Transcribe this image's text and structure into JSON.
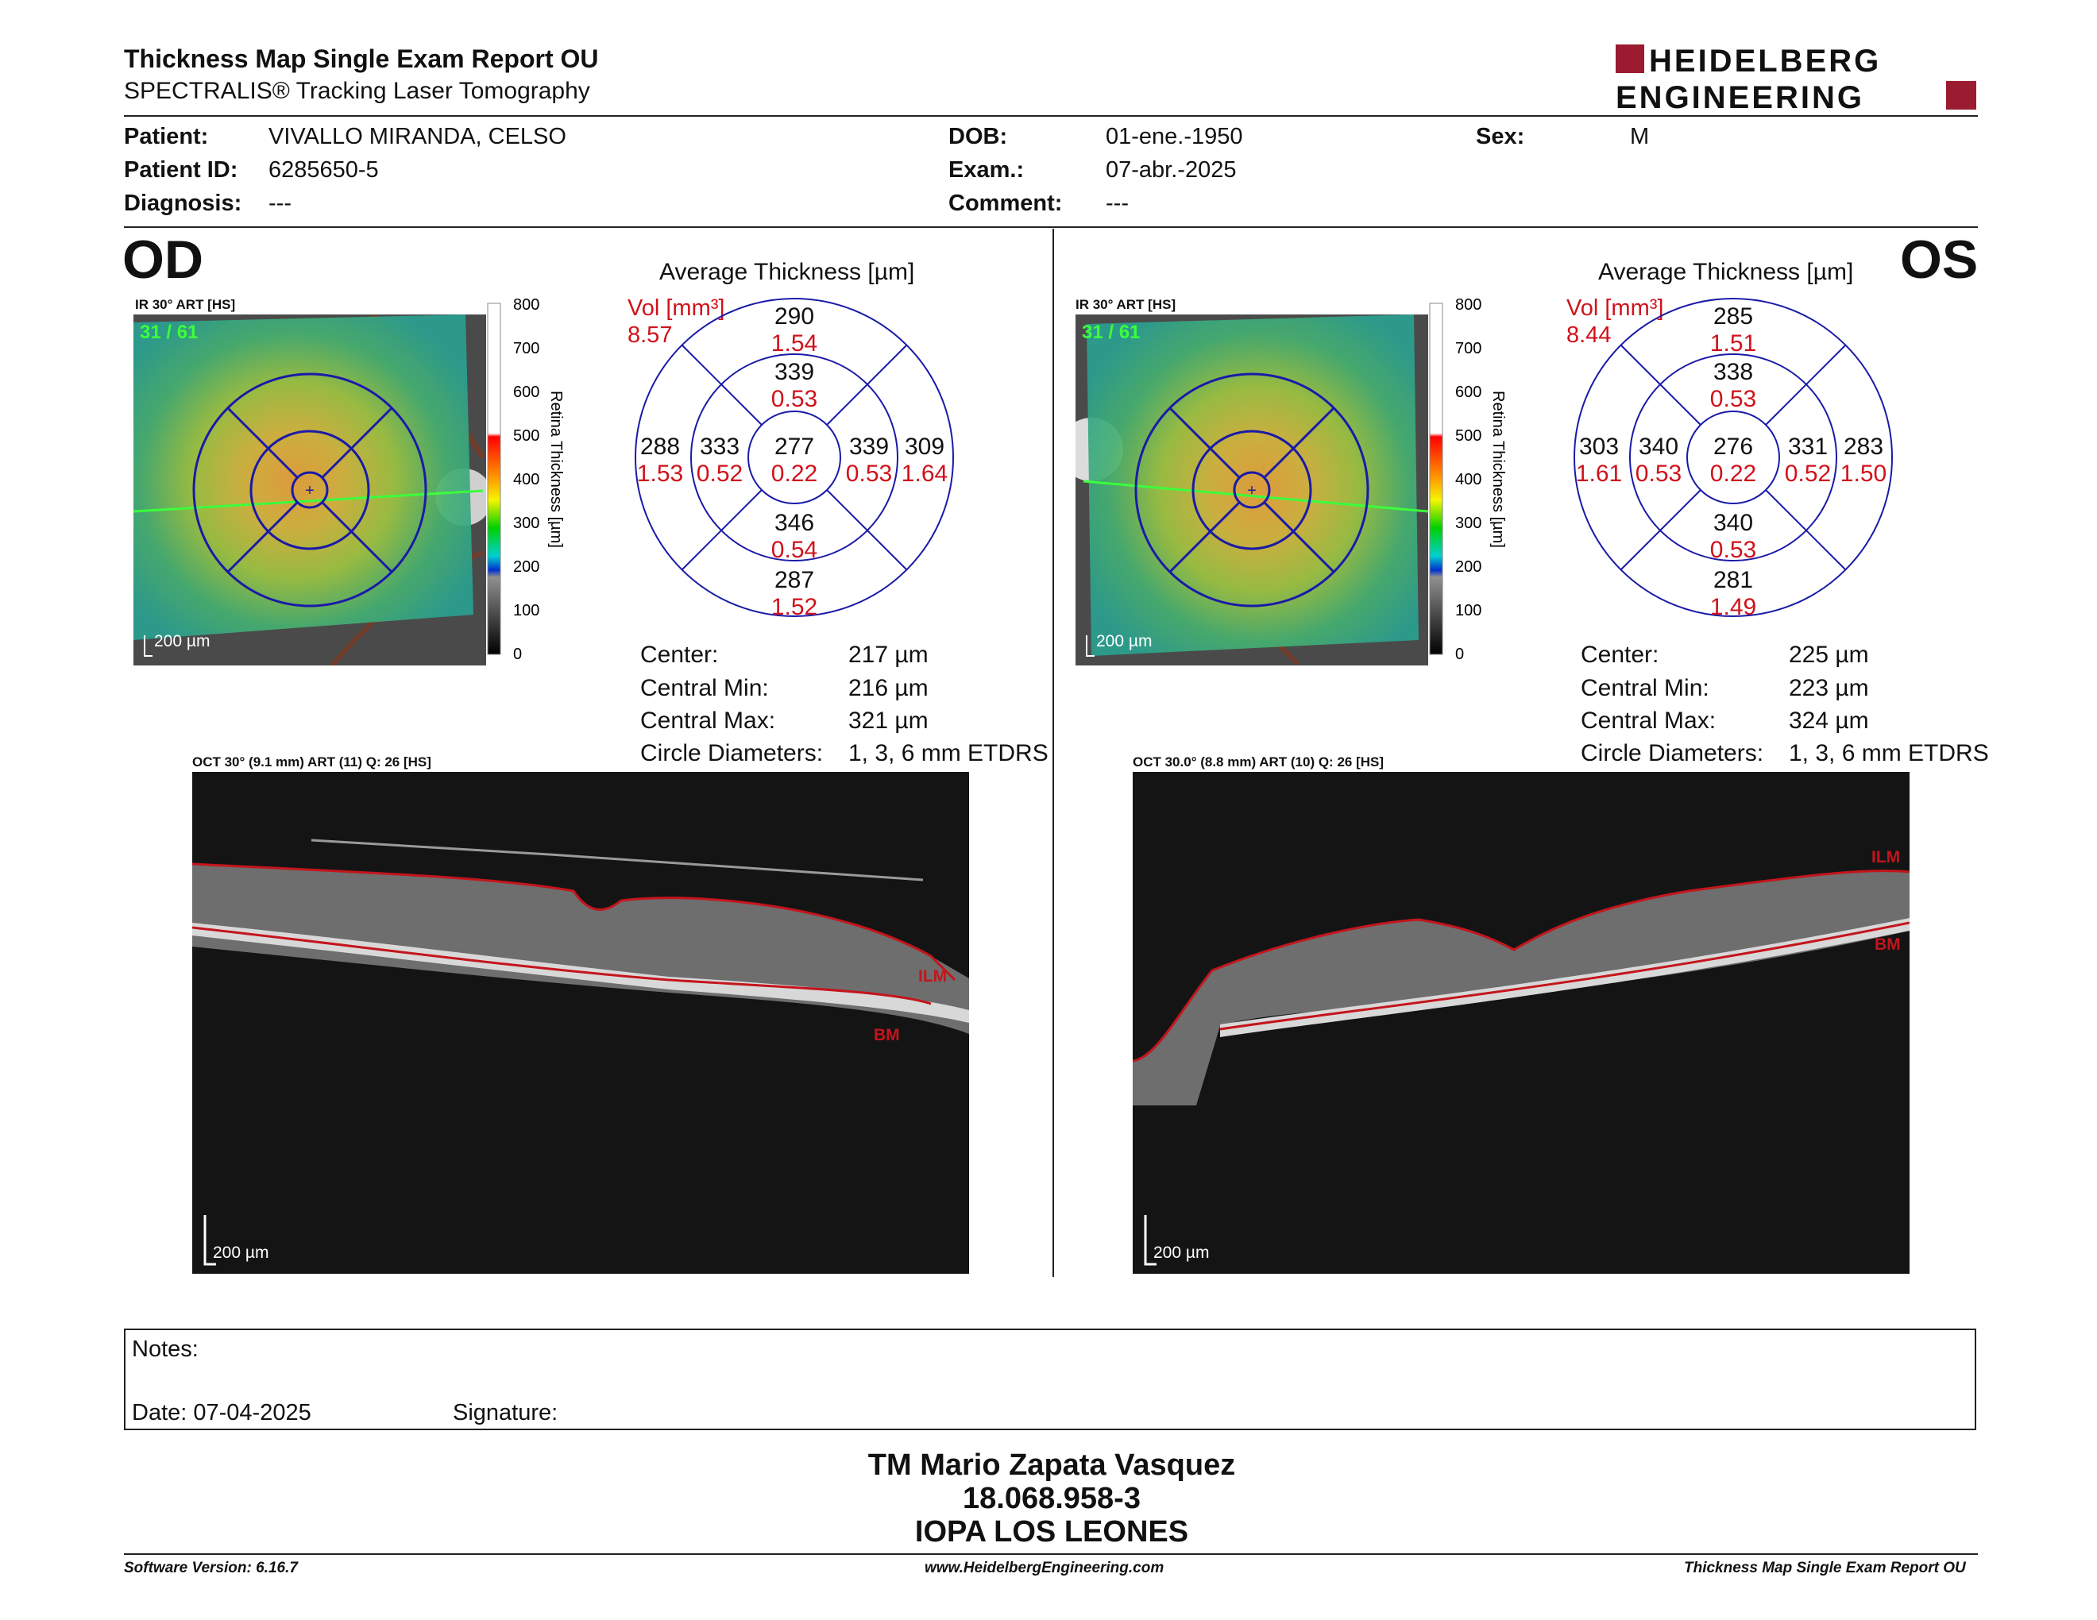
{
  "header": {
    "title": "Thickness Map Single Exam Report OU",
    "subtitle": "SPECTRALIS® Tracking Laser Tomography",
    "logo_line1": "HEIDELBERG",
    "logo_line2": "ENGINEERING",
    "logo_color": "#9b1b30"
  },
  "patient": {
    "patient_label": "Patient:",
    "patient_value": "VIVALLO MIRANDA, CELSO",
    "id_label": "Patient ID:",
    "id_value": "6285650-5",
    "diagnosis_label": "Diagnosis:",
    "diagnosis_value": "---",
    "dob_label": "DOB:",
    "dob_value": "01-ene.-1950",
    "exam_label": "Exam.:",
    "exam_value": "07-abr.-2025",
    "comment_label": "Comment:",
    "comment_value": "---",
    "sex_label": "Sex:",
    "sex_value": "M"
  },
  "od": {
    "eye_label": "OD",
    "ir_caption": "IR 30° ART [HS]",
    "frame_count": "31 / 61",
    "scale_label": "200 µm",
    "colorbar_title": "Retina Thickness [µm]",
    "colorbar_ticks": [
      "800",
      "700",
      "600",
      "500",
      "400",
      "300",
      "200",
      "100",
      "0"
    ],
    "grid_title": "Average Thickness [µm]",
    "vol_label": "Vol [mm³]",
    "vol_value": "8.57",
    "sectors": {
      "outer_top": {
        "t": "290",
        "v": "1.54"
      },
      "inner_top": {
        "t": "339",
        "v": "0.53"
      },
      "outer_left": {
        "t": "288",
        "v": "1.53"
      },
      "inner_left": {
        "t": "333",
        "v": "0.52"
      },
      "center": {
        "t": "277",
        "v": "0.22"
      },
      "inner_right": {
        "t": "339",
        "v": "0.53"
      },
      "outer_right": {
        "t": "309",
        "v": "1.64"
      },
      "inner_bottom": {
        "t": "346",
        "v": "0.54"
      },
      "outer_bottom": {
        "t": "287",
        "v": "1.52"
      }
    },
    "stats": {
      "center_label": "Center:",
      "center_value": "217 µm",
      "min_label": "Central Min:",
      "min_value": "216 µm",
      "max_label": "Central Max:",
      "max_value": "321 µm",
      "diam_label": "Circle Diameters:",
      "diam_value": "1, 3, 6 mm ETDRS"
    },
    "oct_caption": "OCT 30° (9.1 mm) ART (11) Q: 26 [HS]",
    "oct_scale": "200 µm",
    "ilm_label": "ILM",
    "bm_label": "BM"
  },
  "os": {
    "eye_label": "OS",
    "ir_caption": "IR 30° ART [HS]",
    "frame_count": "31 / 61",
    "scale_label": "200 µm",
    "colorbar_title": "Retina Thickness [µm]",
    "colorbar_ticks": [
      "800",
      "700",
      "600",
      "500",
      "400",
      "300",
      "200",
      "100",
      "0"
    ],
    "grid_title": "Average Thickness [µm]",
    "vol_label": "Vol [mm³]",
    "vol_value": "8.44",
    "sectors": {
      "outer_top": {
        "t": "285",
        "v": "1.51"
      },
      "inner_top": {
        "t": "338",
        "v": "0.53"
      },
      "outer_left": {
        "t": "303",
        "v": "1.61"
      },
      "inner_left": {
        "t": "340",
        "v": "0.53"
      },
      "center": {
        "t": "276",
        "v": "0.22"
      },
      "inner_right": {
        "t": "331",
        "v": "0.52"
      },
      "outer_right": {
        "t": "283",
        "v": "1.50"
      },
      "inner_bottom": {
        "t": "340",
        "v": "0.53"
      },
      "outer_bottom": {
        "t": "281",
        "v": "1.49"
      }
    },
    "stats": {
      "center_label": "Center:",
      "center_value": "225 µm",
      "min_label": "Central Min:",
      "min_value": "223 µm",
      "max_label": "Central Max:",
      "max_value": "324 µm",
      "diam_label": "Circle Diameters:",
      "diam_value": "1, 3, 6 mm ETDRS"
    },
    "oct_caption": "OCT 30.0° (8.8 mm) ART (10) Q: 26 [HS]",
    "oct_scale": "200 µm",
    "ilm_label": "ILM",
    "bm_label": "BM"
  },
  "notes": {
    "notes_label": "Notes:",
    "date_label": "Date: 07-04-2025",
    "signature_label": "Signature:"
  },
  "footer": {
    "name": "TM Mario Zapata Vasquez",
    "rut": "18.068.958-3",
    "clinic": "IOPA LOS LEONES",
    "software": "Software Version: 6.16.7",
    "website": "www.HeidelbergEngineering.com",
    "report_name": "Thickness Map Single Exam Report OU"
  },
  "colors": {
    "thickness_value": "#111111",
    "volume_value": "#d0121b",
    "grid_lines": "#1a1aa8",
    "segmentation": "#c4151c"
  }
}
